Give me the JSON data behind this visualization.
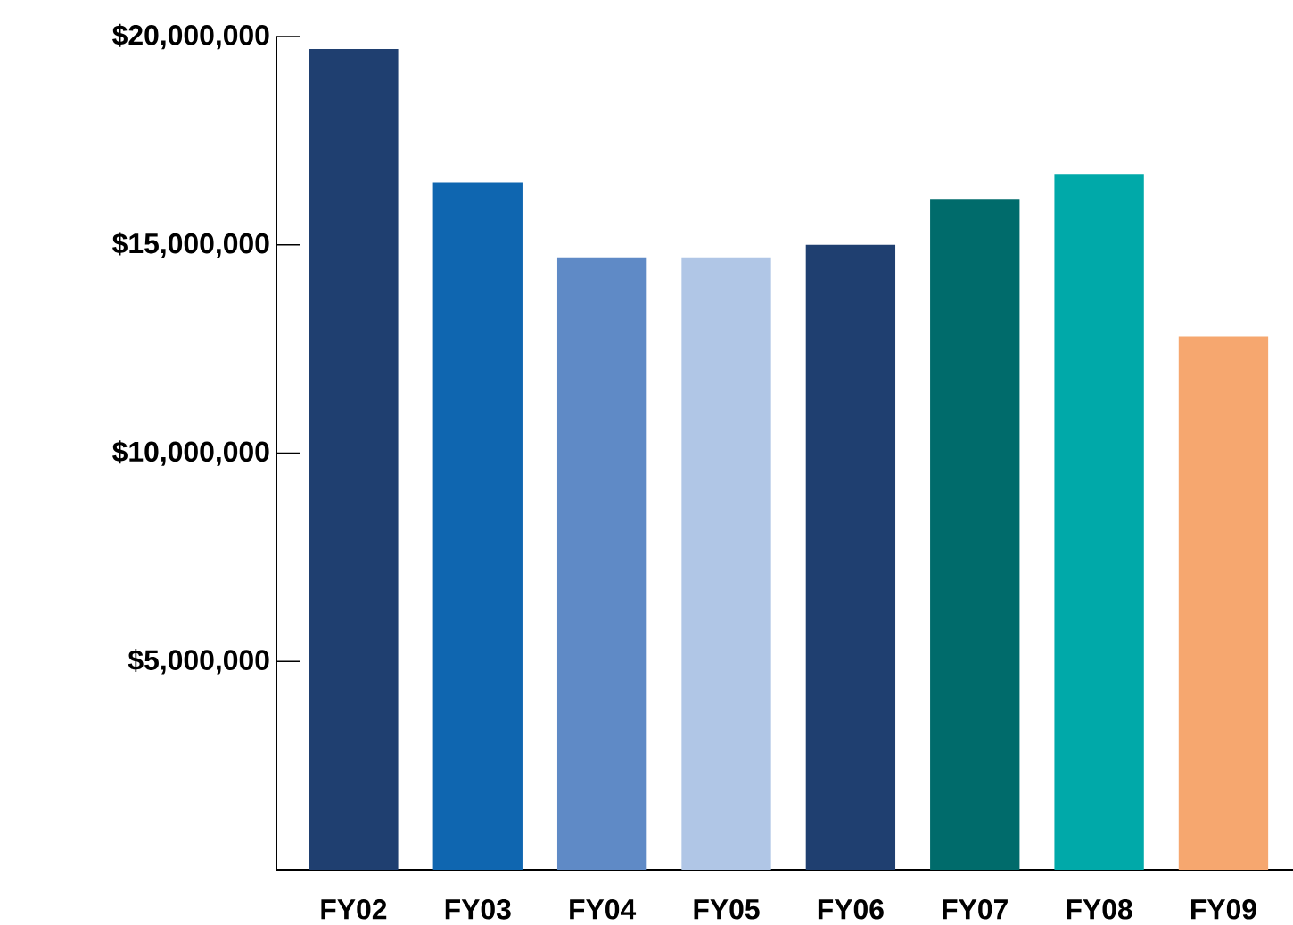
{
  "chart_data": {
    "type": "bar",
    "categories": [
      "FY02",
      "FY03",
      "FY04",
      "FY05",
      "FY06",
      "FY07",
      "FY08",
      "FY09"
    ],
    "values": [
      19700000,
      16500000,
      14700000,
      14700000,
      15000000,
      16100000,
      16700000,
      12800000
    ],
    "colors": [
      "#1f3f70",
      "#0f66b0",
      "#5f8ac6",
      "#b0c6e6",
      "#1f3f70",
      "#006b6b",
      "#00a9a9",
      "#f6a76f"
    ],
    "ylim": [
      0,
      20000000
    ],
    "yticks": [
      {
        "value": 5000000,
        "label": "$5,000,000"
      },
      {
        "value": 10000000,
        "label": "$10,000,000"
      },
      {
        "value": 15000000,
        "label": "$15,000,000"
      },
      {
        "value": 20000000,
        "label": "$20,000,000"
      }
    ],
    "grid": false
  }
}
